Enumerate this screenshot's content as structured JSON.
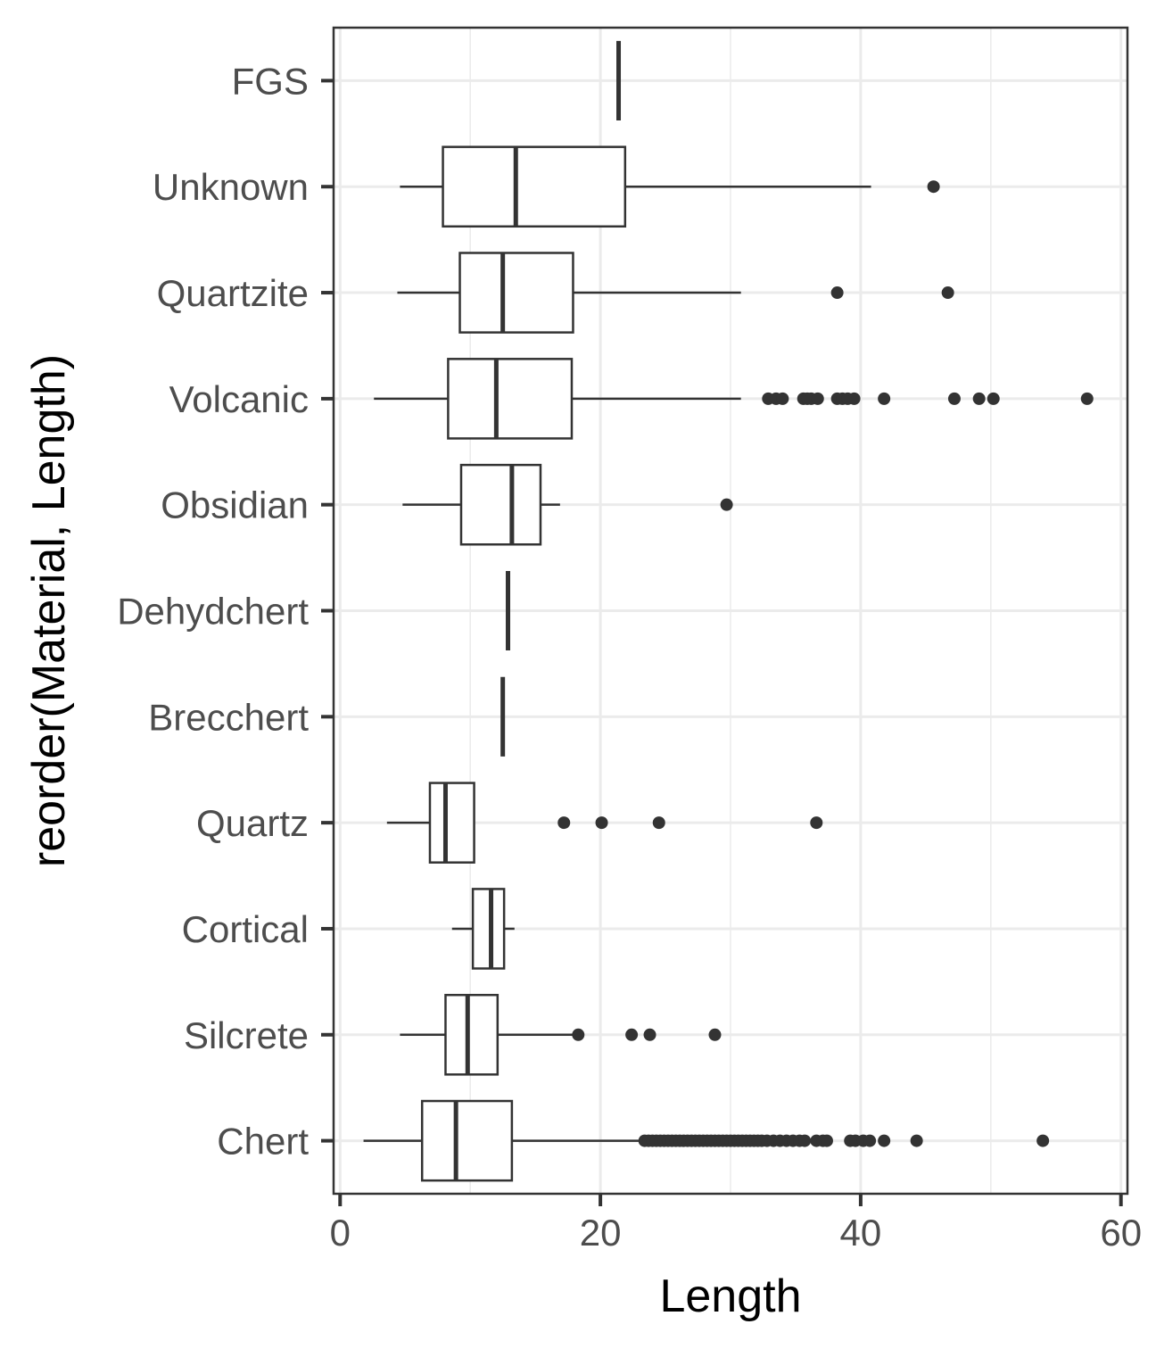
{
  "chart_data": {
    "type": "boxplot",
    "orientation": "horizontal",
    "xlabel": "Length",
    "ylabel": "reorder(Material, Length)",
    "xlim": [
      -0.5,
      60.5
    ],
    "xticks": [
      0,
      20,
      40,
      60
    ],
    "grid": true,
    "theme": "bw",
    "categories": [
      "Chert",
      "Silcrete",
      "Cortical",
      "Quartz",
      "Brecchert",
      "Dehydchert",
      "Obsidian",
      "Volcanic",
      "Quartzite",
      "Unknown",
      "FGS"
    ],
    "boxes": [
      {
        "name": "Chert",
        "whisker_low": 1.8,
        "q1": 6.3,
        "median": 8.9,
        "q3": 13.2,
        "whisker_high": 23.2,
        "outliers": [
          23.4,
          23.7,
          24.0,
          24.3,
          24.6,
          24.9,
          25.2,
          25.5,
          25.8,
          26.1,
          26.4,
          26.7,
          27.0,
          27.3,
          27.6,
          27.9,
          28.2,
          28.5,
          28.8,
          29.1,
          29.4,
          29.7,
          30.0,
          30.3,
          30.6,
          30.9,
          31.2,
          31.5,
          31.8,
          32.1,
          32.4,
          32.8,
          33.3,
          33.8,
          34.3,
          34.8,
          35.3,
          35.7,
          36.6,
          37.1,
          37.4,
          39.2,
          39.6,
          40.2,
          40.7,
          41.8,
          44.3,
          54.0
        ]
      },
      {
        "name": "Silcrete",
        "whisker_low": 4.6,
        "q1": 8.1,
        "median": 9.8,
        "q3": 12.1,
        "whisker_high": 17.9,
        "outliers": [
          18.3,
          22.4,
          23.8,
          28.8
        ]
      },
      {
        "name": "Cortical",
        "whisker_low": 8.6,
        "q1": 10.2,
        "median": 11.6,
        "q3": 12.6,
        "whisker_high": 13.4,
        "outliers": []
      },
      {
        "name": "Quartz",
        "whisker_low": 3.6,
        "q1": 6.9,
        "median": 8.1,
        "q3": 10.3,
        "whisker_high": 10.3,
        "outliers": [
          17.2,
          20.1,
          24.5,
          36.6
        ]
      },
      {
        "name": "Brecchert",
        "whisker_low": 12.5,
        "q1": 12.5,
        "median": 12.5,
        "q3": 12.5,
        "whisker_high": 12.5,
        "outliers": []
      },
      {
        "name": "Dehydchert",
        "whisker_low": 12.9,
        "q1": 12.9,
        "median": 12.9,
        "q3": 12.9,
        "whisker_high": 12.9,
        "outliers": []
      },
      {
        "name": "Obsidian",
        "whisker_low": 4.8,
        "q1": 9.3,
        "median": 13.2,
        "q3": 15.4,
        "whisker_high": 16.9,
        "outliers": [
          29.7
        ]
      },
      {
        "name": "Volcanic",
        "whisker_low": 2.6,
        "q1": 8.3,
        "median": 12.0,
        "q3": 17.8,
        "whisker_high": 30.8,
        "outliers": [
          32.9,
          33.5,
          34.0,
          35.6,
          35.9,
          36.2,
          36.7,
          38.2,
          38.6,
          39.0,
          39.5,
          41.8,
          47.2,
          49.1,
          50.2,
          57.4
        ]
      },
      {
        "name": "Quartzite",
        "whisker_low": 4.4,
        "q1": 9.2,
        "median": 12.5,
        "q3": 17.9,
        "whisker_high": 30.8,
        "outliers": [
          38.2,
          46.7
        ]
      },
      {
        "name": "Unknown",
        "whisker_low": 4.6,
        "q1": 7.9,
        "median": 13.5,
        "q3": 21.9,
        "whisker_high": 40.8,
        "outliers": [
          45.6
        ]
      },
      {
        "name": "FGS",
        "whisker_low": 21.4,
        "q1": 21.4,
        "median": 21.4,
        "q3": 21.4,
        "whisker_high": 21.4,
        "outliers": []
      }
    ]
  },
  "colors": {
    "box_stroke": "#333333",
    "outlier_fill": "#333333",
    "grid_major": "#ebebeb",
    "grid_minor": "#ebebeb",
    "panel_border": "#333333",
    "tick_label": "#4d4d4d",
    "axis_title": "#000000"
  }
}
